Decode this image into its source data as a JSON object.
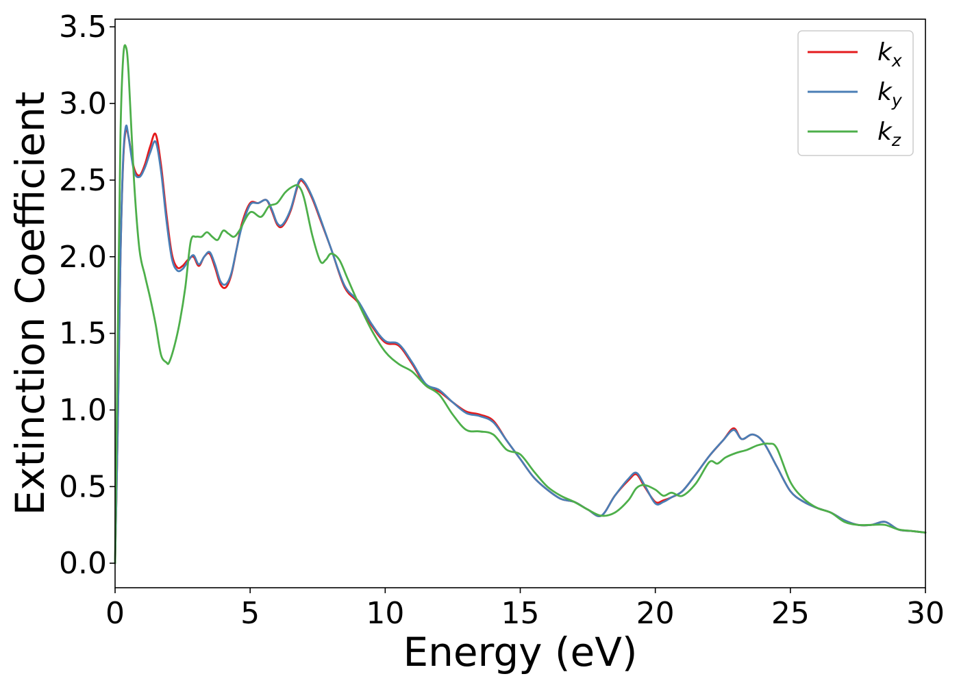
{
  "chart_data": {
    "type": "line",
    "title": "",
    "xlabel": "Energy (eV)",
    "ylabel": "Extinction Coefficient",
    "xlim": [
      0,
      30
    ],
    "ylim": [
      -0.16,
      3.55
    ],
    "xticks": [
      0,
      5,
      10,
      15,
      20,
      25,
      30
    ],
    "xtick_labels": [
      "0",
      "5",
      "10",
      "15",
      "20",
      "25",
      "30"
    ],
    "yticks": [
      0.0,
      0.5,
      1.0,
      1.5,
      2.0,
      2.5,
      3.0,
      3.5
    ],
    "ytick_labels": [
      "0.0",
      "0.5",
      "1.0",
      "1.5",
      "2.0",
      "2.5",
      "3.0",
      "3.5"
    ],
    "grid": false,
    "legend_position": "top-right",
    "series": [
      {
        "name": "k",
        "subscript": "x",
        "color": "#e41a1c",
        "x": [
          0,
          0.1,
          0.2,
          0.3,
          0.4,
          0.5,
          0.7,
          0.9,
          1.1,
          1.3,
          1.5,
          1.7,
          1.9,
          2.1,
          2.3,
          2.5,
          2.7,
          2.9,
          3.1,
          3.3,
          3.5,
          3.7,
          3.9,
          4.1,
          4.3,
          4.5,
          4.7,
          5.0,
          5.3,
          5.6,
          5.8,
          6.0,
          6.2,
          6.5,
          6.8,
          7.0,
          7.3,
          7.6,
          8.0,
          8.5,
          9.0,
          9.5,
          10.0,
          10.5,
          11.0,
          11.5,
          12.0,
          12.5,
          13.0,
          13.5,
          14.0,
          14.5,
          15.0,
          15.5,
          16.0,
          16.5,
          17.0,
          17.5,
          18.0,
          18.5,
          19.0,
          19.3,
          19.6,
          20.0,
          20.3,
          20.6,
          21.0,
          21.5,
          22.0,
          22.5,
          22.9,
          23.2,
          23.6,
          24.0,
          24.5,
          25.0,
          25.5,
          26.0,
          26.5,
          27.0,
          27.5,
          28.0,
          28.5,
          29.0,
          29.5,
          30.0
        ],
        "y": [
          0.0,
          0.9,
          2.0,
          2.62,
          2.83,
          2.78,
          2.58,
          2.53,
          2.6,
          2.72,
          2.8,
          2.6,
          2.28,
          2.02,
          1.93,
          1.94,
          1.98,
          2.0,
          1.94,
          2.0,
          2.02,
          1.93,
          1.82,
          1.8,
          1.88,
          2.05,
          2.22,
          2.35,
          2.35,
          2.37,
          2.3,
          2.21,
          2.2,
          2.3,
          2.48,
          2.48,
          2.38,
          2.24,
          2.05,
          1.8,
          1.7,
          1.55,
          1.44,
          1.42,
          1.3,
          1.16,
          1.12,
          1.05,
          0.99,
          0.97,
          0.93,
          0.8,
          0.68,
          0.56,
          0.48,
          0.42,
          0.4,
          0.35,
          0.31,
          0.44,
          0.54,
          0.58,
          0.5,
          0.4,
          0.41,
          0.43,
          0.47,
          0.58,
          0.7,
          0.8,
          0.88,
          0.81,
          0.84,
          0.79,
          0.63,
          0.47,
          0.4,
          0.36,
          0.33,
          0.28,
          0.25,
          0.25,
          0.27,
          0.22,
          0.21,
          0.2
        ]
      },
      {
        "name": "k",
        "subscript": "y",
        "color": "#4a7eb5",
        "x": [
          0,
          0.1,
          0.2,
          0.3,
          0.4,
          0.5,
          0.7,
          0.9,
          1.1,
          1.3,
          1.5,
          1.7,
          1.9,
          2.1,
          2.3,
          2.5,
          2.7,
          2.9,
          3.1,
          3.3,
          3.5,
          3.7,
          3.9,
          4.1,
          4.3,
          4.5,
          4.7,
          5.0,
          5.3,
          5.6,
          5.8,
          6.0,
          6.2,
          6.5,
          6.8,
          7.0,
          7.3,
          7.6,
          8.0,
          8.5,
          9.0,
          9.5,
          10.0,
          10.5,
          11.0,
          11.5,
          12.0,
          12.5,
          13.0,
          13.5,
          14.0,
          14.5,
          15.0,
          15.5,
          16.0,
          16.5,
          17.0,
          17.5,
          18.0,
          18.5,
          19.0,
          19.3,
          19.6,
          20.0,
          20.3,
          20.6,
          21.0,
          21.5,
          22.0,
          22.5,
          22.9,
          23.2,
          23.6,
          24.0,
          24.5,
          25.0,
          25.5,
          26.0,
          26.5,
          27.0,
          27.5,
          28.0,
          28.5,
          29.0,
          29.5,
          30.0
        ],
        "y": [
          0.0,
          0.9,
          2.0,
          2.64,
          2.85,
          2.78,
          2.56,
          2.52,
          2.58,
          2.68,
          2.75,
          2.56,
          2.24,
          1.99,
          1.91,
          1.92,
          1.97,
          2.01,
          1.95,
          2.0,
          2.03,
          1.95,
          1.84,
          1.82,
          1.89,
          2.05,
          2.2,
          2.34,
          2.35,
          2.37,
          2.31,
          2.22,
          2.21,
          2.31,
          2.49,
          2.49,
          2.39,
          2.25,
          2.05,
          1.81,
          1.71,
          1.56,
          1.45,
          1.43,
          1.31,
          1.17,
          1.13,
          1.05,
          0.98,
          0.96,
          0.92,
          0.8,
          0.68,
          0.56,
          0.48,
          0.42,
          0.4,
          0.35,
          0.31,
          0.44,
          0.55,
          0.59,
          0.51,
          0.39,
          0.4,
          0.43,
          0.47,
          0.58,
          0.7,
          0.8,
          0.87,
          0.81,
          0.84,
          0.79,
          0.63,
          0.47,
          0.4,
          0.36,
          0.33,
          0.28,
          0.25,
          0.25,
          0.27,
          0.22,
          0.21,
          0.2
        ]
      },
      {
        "name": "k",
        "subscript": "z",
        "color": "#4daf4a",
        "x": [
          0,
          0.1,
          0.2,
          0.3,
          0.4,
          0.5,
          0.7,
          0.9,
          1.1,
          1.3,
          1.5,
          1.7,
          1.9,
          2.0,
          2.2,
          2.4,
          2.6,
          2.8,
          3.0,
          3.2,
          3.4,
          3.6,
          3.8,
          4.0,
          4.2,
          4.4,
          4.6,
          5.0,
          5.4,
          5.7,
          6.0,
          6.3,
          6.6,
          6.8,
          7.0,
          7.3,
          7.6,
          7.8,
          8.0,
          8.3,
          8.6,
          9.0,
          9.5,
          10.0,
          10.5,
          11.0,
          11.5,
          12.0,
          12.5,
          13.0,
          13.5,
          14.0,
          14.5,
          15.0,
          15.5,
          16.0,
          16.5,
          17.0,
          17.5,
          18.0,
          18.5,
          19.0,
          19.3,
          19.6,
          20.0,
          20.3,
          20.6,
          21.0,
          21.5,
          22.0,
          22.3,
          22.6,
          23.0,
          23.4,
          23.8,
          24.2,
          24.5,
          25.0,
          25.5,
          26.0,
          26.5,
          27.0,
          27.5,
          28.0,
          28.5,
          29.0,
          29.5,
          30.0
        ],
        "y": [
          0.0,
          1.5,
          2.8,
          3.3,
          3.37,
          3.2,
          2.5,
          2.05,
          1.88,
          1.73,
          1.56,
          1.36,
          1.31,
          1.31,
          1.42,
          1.58,
          1.8,
          2.1,
          2.13,
          2.13,
          2.16,
          2.13,
          2.11,
          2.17,
          2.15,
          2.13,
          2.17,
          2.29,
          2.26,
          2.33,
          2.35,
          2.42,
          2.46,
          2.46,
          2.38,
          2.14,
          1.97,
          1.98,
          2.02,
          1.98,
          1.86,
          1.7,
          1.52,
          1.38,
          1.3,
          1.25,
          1.16,
          1.1,
          0.97,
          0.87,
          0.86,
          0.84,
          0.74,
          0.71,
          0.6,
          0.5,
          0.44,
          0.4,
          0.35,
          0.31,
          0.33,
          0.41,
          0.49,
          0.51,
          0.48,
          0.44,
          0.46,
          0.44,
          0.52,
          0.66,
          0.65,
          0.69,
          0.72,
          0.74,
          0.77,
          0.78,
          0.75,
          0.53,
          0.42,
          0.36,
          0.33,
          0.27,
          0.25,
          0.25,
          0.25,
          0.22,
          0.21,
          0.2
        ]
      }
    ]
  }
}
